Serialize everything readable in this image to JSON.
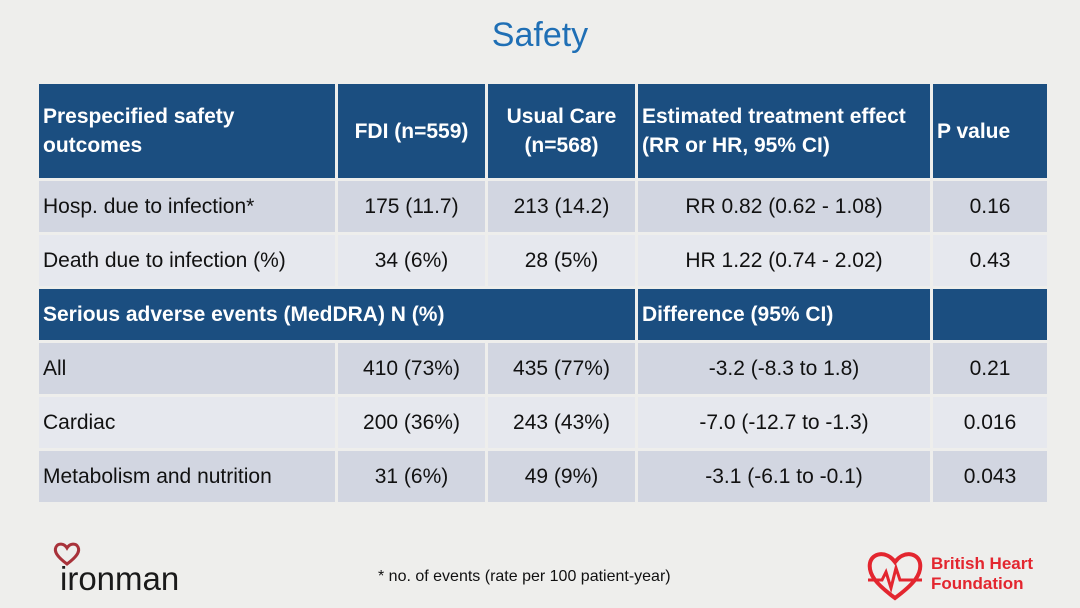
{
  "title": "Safety",
  "header": {
    "col1": "Prespecified safety outcomes",
    "col2": "FDI (n=559)",
    "col3": "Usual Care (n=568)",
    "col4": "Estimated treatment effect (RR or HR, 95% CI)",
    "col5": "P value"
  },
  "prespecified_rows": [
    {
      "outcome": "Hosp. due to infection*",
      "fdi": "175 (11.7)",
      "usual": "213 (14.2)",
      "effect": "RR 0.82 (0.62 - 1.08)",
      "p": "0.16"
    },
    {
      "outcome": "Death due to infection (%)",
      "fdi": "34 (6%)",
      "usual": "28 (5%)",
      "effect": "HR 1.22 (0.74 - 2.02)",
      "p": "0.43"
    }
  ],
  "section2": {
    "label": "Serious adverse events (MedDRA) N (%)",
    "effect_label": "Difference (95% CI)"
  },
  "sae_rows": [
    {
      "outcome": "All",
      "fdi": "410 (73%)",
      "usual": "435 (77%)",
      "effect": "-3.2 (-8.3 to 1.8)",
      "p": "0.21"
    },
    {
      "outcome": "Cardiac",
      "fdi": "200 (36%)",
      "usual": "243 (43%)",
      "effect": "-7.0 (-12.7 to -1.3)",
      "p": "0.016"
    },
    {
      "outcome": "Metabolism and nutrition",
      "fdi": "31 (6%)",
      "usual": "49 (9%)",
      "effect": "-3.1 (-6.1 to -0.1)",
      "p": "0.043"
    }
  ],
  "footnote": "* no. of events (rate per 100 patient-year)",
  "logos": {
    "left": "ironman",
    "right": "British Heart Foundation"
  },
  "colors": {
    "title": "#1f6fb5",
    "header_bg": "#1b4e80",
    "row_dark": "#d2d6e1",
    "row_light": "#e6e8ee",
    "bhf_red": "#e3262f"
  }
}
